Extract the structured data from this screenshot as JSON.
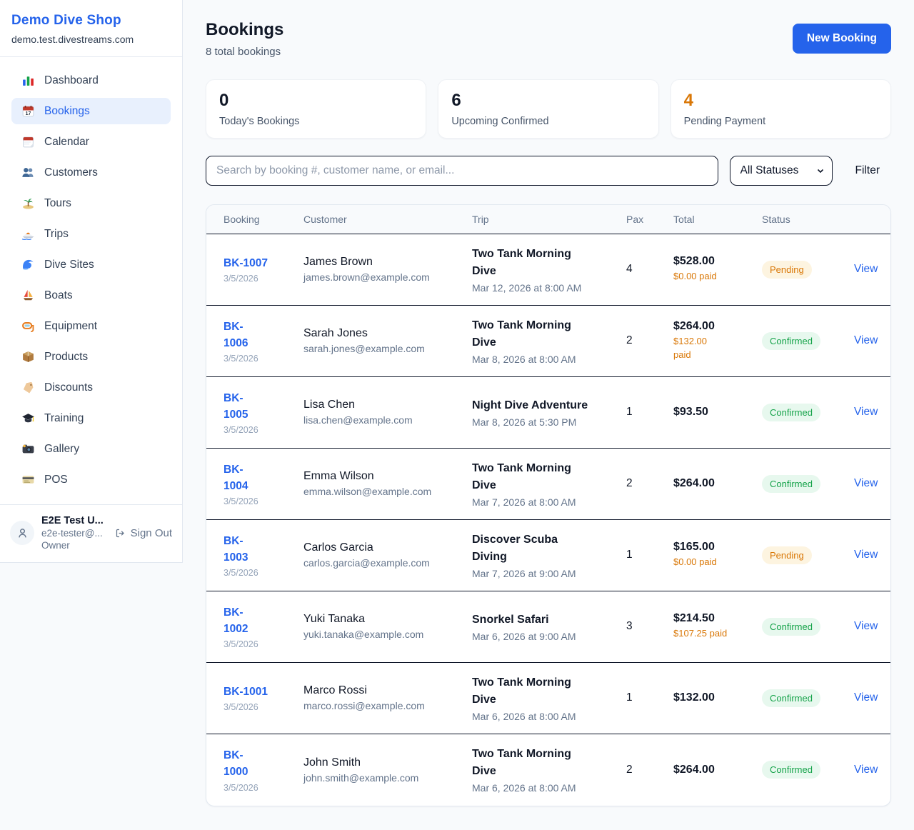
{
  "sidebar": {
    "brand": {
      "name": "Demo Dive Shop",
      "domain": "demo.test.divestreams.com"
    },
    "items": [
      {
        "label": "Dashboard",
        "icon": "bar-chart",
        "active": false
      },
      {
        "label": "Bookings",
        "icon": "calendar",
        "active": true
      },
      {
        "label": "Calendar",
        "icon": "tear-calendar",
        "active": false
      },
      {
        "label": "Customers",
        "icon": "users",
        "active": false
      },
      {
        "label": "Tours",
        "icon": "island",
        "active": false
      },
      {
        "label": "Trips",
        "icon": "speedboat",
        "active": false
      },
      {
        "label": "Dive Sites",
        "icon": "wave",
        "active": false
      },
      {
        "label": "Boats",
        "icon": "sailboat",
        "active": false
      },
      {
        "label": "Equipment",
        "icon": "diving-mask",
        "active": false
      },
      {
        "label": "Products",
        "icon": "package",
        "active": false
      },
      {
        "label": "Discounts",
        "icon": "tag",
        "active": false
      },
      {
        "label": "Training",
        "icon": "graduation-cap",
        "active": false
      },
      {
        "label": "Gallery",
        "icon": "camera",
        "active": false
      },
      {
        "label": "POS",
        "icon": "credit-card",
        "active": false
      }
    ],
    "user": {
      "name": "E2E Test U...",
      "email": "e2e-tester@...",
      "role": "Owner",
      "signout_label": "Sign Out"
    }
  },
  "header": {
    "title": "Bookings",
    "subtitle": "8 total bookings",
    "new_booking_label": "New Booking"
  },
  "stats": [
    {
      "value": "0",
      "label": "Today's Bookings",
      "accent": false
    },
    {
      "value": "6",
      "label": "Upcoming Confirmed",
      "accent": false
    },
    {
      "value": "4",
      "label": "Pending Payment",
      "accent": true
    }
  ],
  "controls": {
    "search_placeholder": "Search by booking #, customer name, or email...",
    "status_filter": "All Statuses",
    "filter_label": "Filter"
  },
  "table": {
    "columns": [
      "Booking",
      "Customer",
      "Trip",
      "Pax",
      "Total",
      "Status",
      ""
    ],
    "rows": [
      {
        "id_lines": [
          "BK-1007"
        ],
        "date": "3/5/2026",
        "customer": {
          "name": "James Brown",
          "email": "james.brown@example.com"
        },
        "trip": {
          "name_lines": [
            "Two Tank Morning",
            "Dive"
          ],
          "datetime": "Mar 12, 2026 at 8:00 AM"
        },
        "pax": "4",
        "total": "$528.00",
        "paid_lines": [
          "$0.00 paid"
        ],
        "status": "Pending",
        "action": "View"
      },
      {
        "id_lines": [
          "BK-",
          "1006"
        ],
        "date": "3/5/2026",
        "customer": {
          "name": "Sarah Jones",
          "email": "sarah.jones@example.com"
        },
        "trip": {
          "name_lines": [
            "Two Tank Morning",
            "Dive"
          ],
          "datetime": "Mar 8, 2026 at 8:00 AM"
        },
        "pax": "2",
        "total": "$264.00",
        "paid_lines": [
          "$132.00",
          "paid"
        ],
        "status": "Confirmed",
        "action": "View"
      },
      {
        "id_lines": [
          "BK-",
          "1005"
        ],
        "date": "3/5/2026",
        "customer": {
          "name": "Lisa Chen",
          "email": "lisa.chen@example.com"
        },
        "trip": {
          "name_lines": [
            "Night Dive Adventure"
          ],
          "datetime": "Mar 8, 2026 at 5:30 PM"
        },
        "pax": "1",
        "total": "$93.50",
        "paid_lines": [],
        "status": "Confirmed",
        "action": "View"
      },
      {
        "id_lines": [
          "BK-",
          "1004"
        ],
        "date": "3/5/2026",
        "customer": {
          "name": "Emma Wilson",
          "email": "emma.wilson@example.com"
        },
        "trip": {
          "name_lines": [
            "Two Tank Morning",
            "Dive"
          ],
          "datetime": "Mar 7, 2026 at 8:00 AM"
        },
        "pax": "2",
        "total": "$264.00",
        "paid_lines": [],
        "status": "Confirmed",
        "action": "View"
      },
      {
        "id_lines": [
          "BK-",
          "1003"
        ],
        "date": "3/5/2026",
        "customer": {
          "name": "Carlos Garcia",
          "email": "carlos.garcia@example.com"
        },
        "trip": {
          "name_lines": [
            "Discover Scuba",
            "Diving"
          ],
          "datetime": "Mar 7, 2026 at 9:00 AM"
        },
        "pax": "1",
        "total": "$165.00",
        "paid_lines": [
          "$0.00 paid"
        ],
        "status": "Pending",
        "action": "View"
      },
      {
        "id_lines": [
          "BK-",
          "1002"
        ],
        "date": "3/5/2026",
        "customer": {
          "name": "Yuki Tanaka",
          "email": "yuki.tanaka@example.com"
        },
        "trip": {
          "name_lines": [
            "Snorkel Safari"
          ],
          "datetime": "Mar 6, 2026 at 9:00 AM"
        },
        "pax": "3",
        "total": "$214.50",
        "paid_lines": [
          "$107.25 paid"
        ],
        "status": "Confirmed",
        "action": "View"
      },
      {
        "id_lines": [
          "BK-1001"
        ],
        "date": "3/5/2026",
        "customer": {
          "name": "Marco Rossi",
          "email": "marco.rossi@example.com"
        },
        "trip": {
          "name_lines": [
            "Two Tank Morning",
            "Dive"
          ],
          "datetime": "Mar 6, 2026 at 8:00 AM"
        },
        "pax": "1",
        "total": "$132.00",
        "paid_lines": [],
        "status": "Confirmed",
        "action": "View"
      },
      {
        "id_lines": [
          "BK-",
          "1000"
        ],
        "date": "3/5/2026",
        "customer": {
          "name": "John Smith",
          "email": "john.smith@example.com"
        },
        "trip": {
          "name_lines": [
            "Two Tank Morning",
            "Dive"
          ],
          "datetime": "Mar 6, 2026 at 8:00 AM"
        },
        "pax": "2",
        "total": "$264.00",
        "paid_lines": [],
        "status": "Confirmed",
        "action": "View"
      }
    ]
  },
  "colors": {
    "accent_blue": "#2563eb",
    "active_nav_bg": "#e8f0fd",
    "orange": "#d97706",
    "pending_badge_bg": "#fdf4e0",
    "confirmed_green": "#16a34a",
    "confirmed_badge_bg": "#e7f8ee",
    "row_border": "#0f172a",
    "page_bg": "#f8fafc"
  }
}
